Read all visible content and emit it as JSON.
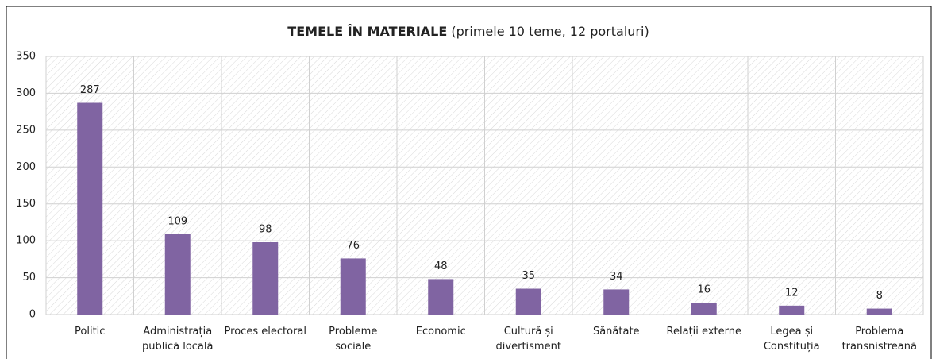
{
  "chart_data": {
    "type": "bar",
    "title": "TEMELE ÎN MATERIALE",
    "subtitle": "(primele 10 teme, 12 portaluri)",
    "categories": [
      "Politic",
      "Administrația publică locală",
      "Proces electoral",
      "Probleme sociale",
      "Economic",
      "Cultură și divertisment",
      "Sănătate",
      "Relații externe",
      "Legea și Constituția",
      "Problema transnistreană"
    ],
    "values": [
      287,
      109,
      98,
      76,
      48,
      35,
      34,
      16,
      12,
      8
    ],
    "color": "#8064a2",
    "ylim": [
      0,
      350
    ],
    "yticks": [
      0,
      50,
      100,
      150,
      200,
      250,
      300,
      350
    ],
    "grid": true
  }
}
